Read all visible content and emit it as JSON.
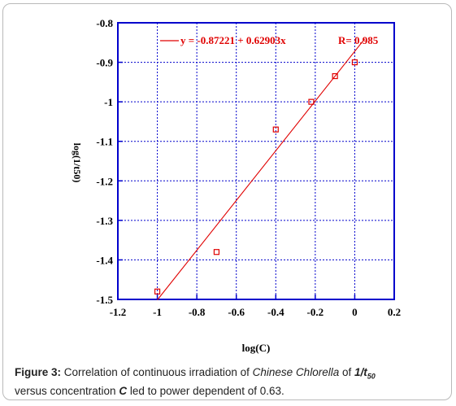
{
  "chart_data": {
    "type": "scatter",
    "xlabel": "log(C)",
    "ylabel": "log(1/t50)",
    "xlim": [
      -1.2,
      0.2
    ],
    "ylim": [
      -1.5,
      -0.8
    ],
    "xticks": [
      -1.2,
      -1,
      -0.8,
      -0.6,
      -0.4,
      -0.2,
      0,
      0.2
    ],
    "xtick_labels": [
      "-1.2",
      "-1",
      "-0.8",
      "-0.6",
      "-0.4",
      "-0.2",
      "0",
      "0.2"
    ],
    "yticks": [
      -1.5,
      -1.4,
      -1.3,
      -1.2,
      -1.1,
      -1,
      -0.9,
      -0.8
    ],
    "ytick_labels": [
      "-1.5",
      "-1.4",
      "-1.3",
      "-1.2",
      "-1.1",
      "-1",
      "-0.9",
      "-0.8"
    ],
    "grid": true,
    "series": [
      {
        "points": [
          {
            "x": -1,
            "y": -1.48
          },
          {
            "x": -0.7,
            "y": -1.38
          },
          {
            "x": -0.4,
            "y": -1.07
          },
          {
            "x": -0.22,
            "y": -1.0
          },
          {
            "x": -0.1,
            "y": -0.935
          },
          {
            "x": 0,
            "y": -0.9
          }
        ],
        "color": "#e00000"
      }
    ],
    "fit": {
      "slope": 0.62903,
      "intercept": -0.87221,
      "x_range": [
        -1,
        0
      ],
      "color": "#e00000",
      "equation": "y = -0.87221 + 0.62903x",
      "r_label": "R= 0.985"
    },
    "colors": {
      "grid": "#0000cc",
      "axes": "#0000cc",
      "data": "#e00000"
    }
  },
  "caption": {
    "fig_label": "Figure 3:",
    "text1": " Correlation of continuous irradiation of ",
    "species": "Chinese Chlorella",
    "text2": " of ",
    "t_label": "1/t",
    "t_sub": "50",
    "text3": "versus concentration ",
    "c_label": "C",
    "text4": " led to power dependent of 0.63."
  }
}
